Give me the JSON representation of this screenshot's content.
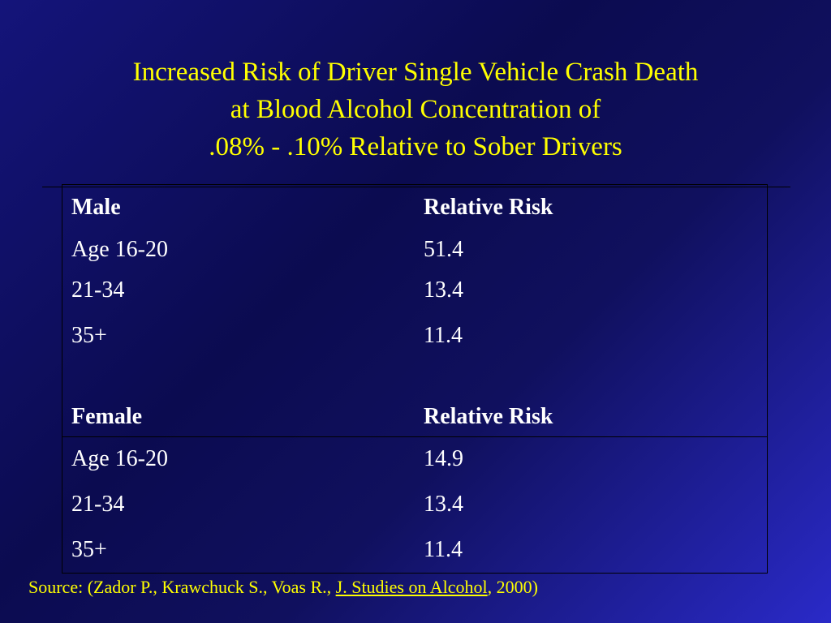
{
  "title": {
    "line1": "Increased Risk of Driver Single Vehicle Crash Death",
    "line2": "at Blood Alcohol Concentration of",
    "line3": ".08% - .10% Relative to Sober Drivers"
  },
  "table": {
    "male": {
      "header": {
        "group": "Male",
        "value": "Relative Risk"
      },
      "rows": [
        {
          "age": "Age 16-20",
          "risk": "51.4"
        },
        {
          "age": "21-34",
          "risk": "13.4"
        },
        {
          "age": "35+",
          "risk": "11.4"
        }
      ]
    },
    "female": {
      "header": {
        "group": "Female",
        "value": "Relative Risk"
      },
      "rows": [
        {
          "age": "Age 16-20",
          "risk": "14.9"
        },
        {
          "age": "21-34",
          "risk": "13.4"
        },
        {
          "age": "35+",
          "risk": "11.4"
        }
      ]
    }
  },
  "source": {
    "prefix": "Source: (Zador P., Krawchuck S., Voas R., ",
    "journal": "J. Studies on Alcohol",
    "suffix": ", 2000)"
  },
  "colors": {
    "title": "#ffff00",
    "text": "#ffffff",
    "background": "#14147a"
  }
}
